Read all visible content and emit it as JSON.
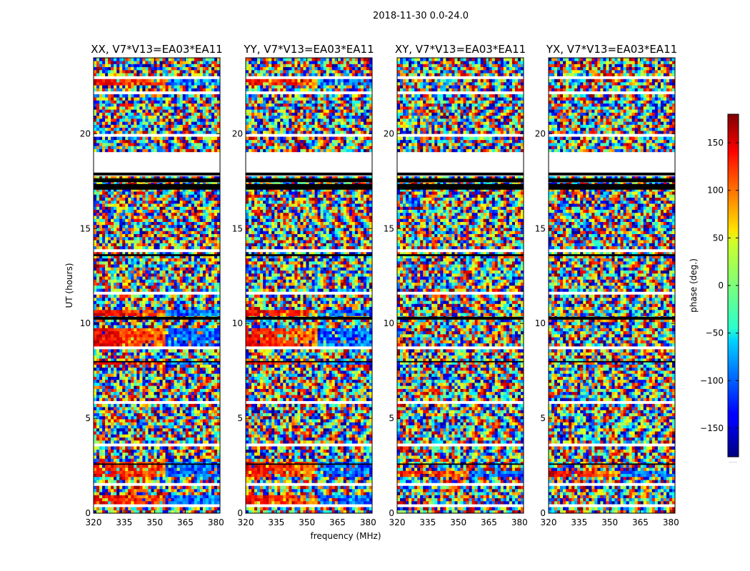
{
  "suptitle": "2018-11-30 0.0-24.0",
  "chart_data": {
    "type": "heatmap",
    "xlabel": "frequency (MHz)",
    "ylabel": "UT (hours)",
    "xlim": [
      320,
      382
    ],
    "ylim": [
      0,
      24
    ],
    "x_ticks": [
      "320",
      "335",
      "350",
      "365",
      "380"
    ],
    "y_ticks": [
      "0",
      "5",
      "10",
      "15",
      "20"
    ],
    "panels": [
      {
        "title": "XX, V7*V13=EA03*EA11",
        "coherent_rows": [
          [
            0.3,
            0.9
          ],
          [
            1.9,
            2.8
          ],
          [
            7.8,
            8.0
          ],
          [
            8.8,
            9.7
          ],
          [
            10.4,
            10.8
          ],
          [
            22.5,
            22.8
          ]
        ]
      },
      {
        "title": "YY, V7*V13=EA03*EA11",
        "coherent_rows": [
          [
            0.3,
            0.9
          ],
          [
            1.9,
            2.8
          ],
          [
            7.8,
            8.0
          ],
          [
            8.8,
            9.7
          ],
          [
            10.4,
            10.8
          ],
          [
            22.5,
            22.8
          ]
        ]
      },
      {
        "title": "XY, V7*V13=EA03*EA11",
        "coherent_rows": [
          [
            1.9,
            2.3
          ]
        ]
      },
      {
        "title": "YX, V7*V13=EA03*EA11",
        "coherent_rows": [
          [
            1.9,
            2.3
          ]
        ]
      }
    ],
    "blank_rows": [
      [
        0.35,
        0.45
      ],
      [
        1.45,
        1.6
      ],
      [
        3.5,
        3.6
      ],
      [
        5.7,
        5.85
      ],
      [
        7.45,
        7.55
      ],
      [
        8.65,
        8.8
      ],
      [
        11.6,
        11.75
      ],
      [
        13.8,
        13.95
      ],
      [
        15.3,
        15.4
      ],
      [
        17.7,
        19.1
      ],
      [
        19.8,
        19.95
      ],
      [
        22.05,
        22.2
      ],
      [
        22.85,
        23.0
      ]
    ],
    "black_rows": [
      [
        17.05,
        17.35
      ],
      [
        17.45,
        17.65
      ],
      [
        17.8,
        17.95
      ],
      [
        13.55,
        13.65
      ],
      [
        10.2,
        10.35
      ],
      [
        2.55,
        2.62
      ],
      [
        7.95,
        8.02
      ]
    ],
    "colorbar": {
      "label": "phase (deg.)",
      "range": [
        -180,
        180
      ],
      "ticks": [
        "150",
        "100",
        "50",
        "0",
        "−50",
        "−100",
        "−150"
      ],
      "tick_values": [
        150,
        100,
        50,
        0,
        -50,
        -100,
        -150
      ],
      "colormap": "jet",
      "footer": "....."
    }
  }
}
